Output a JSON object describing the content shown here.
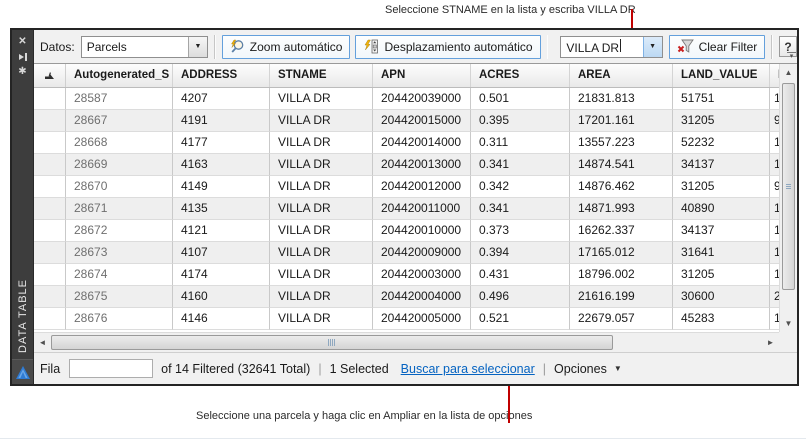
{
  "annotations": {
    "top": "Seleccione STNAME en la lista y escriba VILLA DR",
    "bottom": "Seleccione una parcela y haga clic en Ampliar en la lista de opciones",
    "callout_color": "#c00000"
  },
  "panel": {
    "title_vertical": "DATA TABLE",
    "icons": {
      "close": "✕",
      "auto_hide": "pin-to-bar",
      "settings": "✱",
      "logo": "autocad-triangle"
    }
  },
  "toolbar": {
    "datos_label": "Datos:",
    "layer_combo_value": "Parcels",
    "zoom_button_label": "Zoom automático",
    "pan_button_label": "Desplazamiento automático",
    "filter_combo_value": "VILLA DR",
    "clear_filter_label": "Clear Filter",
    "help_label": "?",
    "combo_arrow": "▼",
    "icons": {
      "zoom_auto": "magnifier-with-bolt",
      "auto_scroll": "bolt-with-scrollbar",
      "clear_filter": "funnel-with-red-x"
    }
  },
  "table": {
    "columns": [
      "Autogenerated_S",
      "ADDRESS",
      "STNAME",
      "APN",
      "ACRES",
      "AREA",
      "LAND_VALUE",
      "I"
    ],
    "rows": [
      [
        "28587",
        "4207",
        "VILLA DR",
        "204420039000",
        "0.501",
        "21831.813",
        "51751",
        "1"
      ],
      [
        "28667",
        "4191",
        "VILLA DR",
        "204420015000",
        "0.395",
        "17201.161",
        "31205",
        "9"
      ],
      [
        "28668",
        "4177",
        "VILLA DR",
        "204420014000",
        "0.311",
        "13557.223",
        "52232",
        "1"
      ],
      [
        "28669",
        "4163",
        "VILLA DR",
        "204420013000",
        "0.341",
        "14874.541",
        "34137",
        "1"
      ],
      [
        "28670",
        "4149",
        "VILLA DR",
        "204420012000",
        "0.342",
        "14876.462",
        "31205",
        "9"
      ],
      [
        "28671",
        "4135",
        "VILLA DR",
        "204420011000",
        "0.341",
        "14871.993",
        "40890",
        "1"
      ],
      [
        "28672",
        "4121",
        "VILLA DR",
        "204420010000",
        "0.373",
        "16262.337",
        "34137",
        "1"
      ],
      [
        "28673",
        "4107",
        "VILLA DR",
        "204420009000",
        "0.394",
        "17165.012",
        "31641",
        "1"
      ],
      [
        "28674",
        "4174",
        "VILLA DR",
        "204420003000",
        "0.431",
        "18796.002",
        "31205",
        "1"
      ],
      [
        "28675",
        "4160",
        "VILLA DR",
        "204420004000",
        "0.496",
        "21616.199",
        "30600",
        "2"
      ],
      [
        "28676",
        "4146",
        "VILLA DR",
        "204420005000",
        "0.521",
        "22679.057",
        "45283",
        "1"
      ]
    ]
  },
  "statusbar": {
    "fila_label": "Fila",
    "row_input_value": "",
    "filter_summary": "of 14 Filtered (32641 Total)",
    "selected_text": "1 Selected",
    "search_link": "Buscar para seleccionar",
    "options_label": "Opciones",
    "options_arrow": "▼",
    "separator": "|"
  },
  "colors": {
    "window_border": "#242424",
    "sidebar_bg": "#3d3d3d",
    "toolbar_button_border": "#64a0dc",
    "row_alt_bg": "#efefef",
    "callout": "#c00000",
    "link": "#0563c1",
    "logo_blue": "#2f7bd4"
  }
}
